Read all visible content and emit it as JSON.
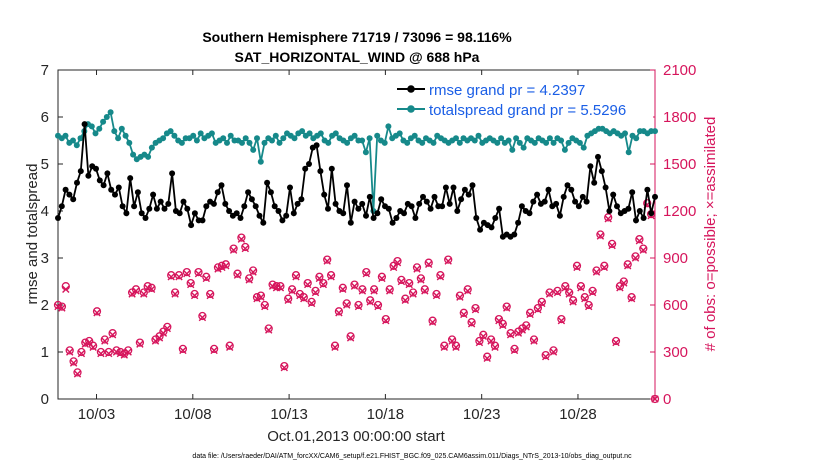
{
  "chart_data": {
    "type": "line",
    "title_line1": "Southern Hemisphere 71719 / 73096 = 98.116%",
    "title_line2": "SAT_HORIZONTAL_WIND @ 688 hPa",
    "ylabel_left": "rmse and totalspread",
    "ylabel_right": "# of obs: o=possible; ×=assimilated",
    "xlabel": "Oct.01,2013 00:00:00 start",
    "footer": "data file: /Users/raeder/DAI/ATM_forcXX/CAM6_setup/f.e21.FHIST_BGC.f09_025.CAM6assim.011/Diags_NTrS_2013-10/obs_diag_output.nc",
    "xlim": [
      1.0,
      32.0
    ],
    "ylim_left": [
      0,
      7
    ],
    "ylim_right": [
      0,
      2100
    ],
    "x_ticks": [
      3,
      8,
      13,
      18,
      23,
      28
    ],
    "x_tick_labels": [
      "10/03",
      "10/08",
      "10/13",
      "10/18",
      "10/23",
      "10/28"
    ],
    "y_left_ticks": [
      0,
      1,
      2,
      3,
      4,
      5,
      6,
      7
    ],
    "y_right_ticks": [
      0,
      300,
      600,
      900,
      1200,
      1500,
      1800,
      2100
    ],
    "legend_position": "top-right",
    "colors": {
      "rmse": "#000000",
      "spread": "#16898a",
      "obs": "#d6155c",
      "axis": "#262626"
    },
    "series": [
      {
        "name": "rmse grand pr = 4.2397",
        "axis": "left",
        "color": "#000000",
        "values": [
          3.85,
          4.1,
          4.45,
          4.35,
          4.25,
          4.6,
          4.85,
          5.85,
          4.75,
          4.95,
          4.9,
          4.65,
          4.55,
          4.8,
          4.45,
          4.35,
          4.5,
          4.1,
          3.95,
          4.7,
          4.1,
          4.4,
          3.95,
          3.85,
          4.05,
          4.35,
          4.05,
          4.2,
          4.05,
          4.15,
          4.8,
          4.0,
          3.95,
          4.2,
          4.05,
          3.7,
          3.95,
          3.8,
          3.8,
          4.1,
          4.2,
          4.15,
          4.4,
          4.55,
          4.15,
          4.0,
          3.9,
          3.95,
          3.85,
          4.1,
          4.4,
          4.25,
          4.1,
          3.9,
          3.75,
          4.6,
          4.4,
          4.1,
          4.0,
          3.8,
          3.9,
          4.5,
          3.95,
          4.15,
          4.25,
          4.9,
          5.0,
          5.35,
          5.4,
          4.85,
          4.35,
          4.05,
          4.9,
          4.15,
          4.0,
          3.95,
          4.55,
          3.75,
          4.2,
          4.05,
          4.15,
          3.9,
          4.3,
          3.85,
          3.95,
          4.25,
          4.1,
          4.05,
          3.75,
          3.85,
          4.0,
          3.95,
          4.15,
          4.1,
          3.85,
          4.15,
          4.3,
          4.2,
          4.05,
          4.3,
          4.1,
          4.1,
          4.5,
          4.15,
          4.5,
          4.0,
          4.25,
          4.45,
          4.35,
          4.55,
          3.85,
          3.6,
          3.75,
          3.7,
          3.65,
          3.85,
          4.05,
          3.45,
          3.5,
          3.45,
          3.5,
          3.75,
          4.1,
          4.0,
          3.95,
          4.2,
          4.35,
          4.15,
          4.2,
          4.45,
          4.1,
          4.15,
          3.9,
          4.3,
          4.55,
          4.45,
          4.2,
          4.1,
          4.3,
          4.2,
          4.95,
          4.6,
          5.15,
          4.85,
          4.5,
          4.0,
          4.35,
          4.1,
          3.95,
          4.0,
          4.05,
          4.4,
          3.8,
          4.0,
          3.85,
          4.45,
          3.95,
          4.3
        ]
      },
      {
        "name": "totalspread grand pr = 5.5296",
        "axis": "left",
        "color": "#16898a",
        "values": [
          5.6,
          5.55,
          5.6,
          5.45,
          5.5,
          5.4,
          5.55,
          5.7,
          5.85,
          5.8,
          5.65,
          5.75,
          5.9,
          6.0,
          6.1,
          5.7,
          5.55,
          5.75,
          5.6,
          5.45,
          5.2,
          5.1,
          5.15,
          5.2,
          5.15,
          5.35,
          5.45,
          5.5,
          5.55,
          5.65,
          5.7,
          5.6,
          5.5,
          5.45,
          5.55,
          5.55,
          5.6,
          5.5,
          5.65,
          5.55,
          5.6,
          5.65,
          5.45,
          5.5,
          5.55,
          5.45,
          5.6,
          5.5,
          5.5,
          5.45,
          5.55,
          5.45,
          5.3,
          5.55,
          5.05,
          5.45,
          5.55,
          5.5,
          5.6,
          5.45,
          5.55,
          5.65,
          5.6,
          5.55,
          5.65,
          5.7,
          5.6,
          5.65,
          5.55,
          5.6,
          5.65,
          5.5,
          5.45,
          5.6,
          5.65,
          5.55,
          5.5,
          5.45,
          5.55,
          5.6,
          5.5,
          5.5,
          5.25,
          5.55,
          4.0,
          5.6,
          5.5,
          5.45,
          5.8,
          5.55,
          5.6,
          5.65,
          5.5,
          5.45,
          5.55,
          5.6,
          5.5,
          5.45,
          5.55,
          5.5,
          5.45,
          5.6,
          5.55,
          5.5,
          5.45,
          5.5,
          5.55,
          5.45,
          5.55,
          5.5,
          5.55,
          5.5,
          5.6,
          5.45,
          5.5,
          5.55,
          5.5,
          5.45,
          5.55,
          5.45,
          5.5,
          5.3,
          5.55,
          5.45,
          5.35,
          5.55,
          5.5,
          5.45,
          5.55,
          5.5,
          5.45,
          5.55,
          5.45,
          5.55,
          5.5,
          5.3,
          5.45,
          5.55,
          5.5,
          5.45,
          5.35,
          5.6,
          5.65,
          5.7,
          5.75,
          5.75,
          5.7,
          5.65,
          5.7,
          5.65,
          5.6,
          5.65,
          5.25,
          5.6,
          5.55,
          5.7,
          5.7,
          5.65,
          5.7,
          5.7
        ]
      },
      {
        "name": "obs possible (o)",
        "axis": "right",
        "color": "#d6155c",
        "marker": "circle",
        "values": [
          600,
          590,
          720,
          310,
          240,
          170,
          300,
          360,
          370,
          340,
          560,
          300,
          380,
          300,
          420,
          310,
          300,
          290,
          310,
          680,
          700,
          360,
          680,
          720,
          710,
          380,
          400,
          430,
          460,
          790,
          680,
          790,
          320,
          810,
          740,
          670,
          810,
          530,
          780,
          670,
          320,
          840,
          850,
          860,
          340,
          960,
          800,
          1030,
          970,
          770,
          820,
          650,
          660,
          600,
          450,
          730,
          720,
          720,
          210,
          640,
          700,
          790,
          670,
          650,
          740,
          620,
          690,
          780,
          740,
          890,
          790,
          340,
          560,
          710,
          610,
          400,
          730,
          600,
          700,
          810,
          630,
          700,
          600,
          780,
          510,
          700,
          850,
          880,
          760,
          640,
          740,
          680,
          840,
          770,
          700,
          870,
          500,
          670,
          790,
          340,
          890,
          380,
          340,
          660,
          550,
          700,
          490,
          580,
          370,
          410,
          270,
          380,
          340,
          510,
          480,
          590,
          420,
          320,
          430,
          450,
          470,
          550,
          380,
          580,
          620,
          280,
          680,
          310,
          690,
          510,
          720,
          680,
          630,
          850,
          720,
          650,
          600,
          690,
          820,
          1050,
          850,
          1160,
          990,
          370,
          720,
          750,
          860,
          650,
          910,
          1020,
          960,
          1250,
          1180,
          0
        ]
      },
      {
        "name": "obs assimilated (×)",
        "axis": "right",
        "color": "#d6155c",
        "marker": "x",
        "values": [
          590,
          580,
          700,
          300,
          230,
          160,
          290,
          350,
          360,
          330,
          550,
          290,
          370,
          290,
          410,
          300,
          290,
          280,
          300,
          670,
          690,
          350,
          670,
          710,
          700,
          370,
          390,
          420,
          450,
          780,
          670,
          780,
          310,
          800,
          730,
          660,
          800,
          520,
          770,
          660,
          310,
          830,
          840,
          850,
          330,
          950,
          790,
          1020,
          960,
          760,
          810,
          640,
          650,
          590,
          440,
          720,
          710,
          710,
          200,
          630,
          690,
          780,
          660,
          640,
          730,
          610,
          680,
          770,
          730,
          880,
          780,
          330,
          550,
          700,
          600,
          390,
          720,
          590,
          690,
          800,
          620,
          690,
          590,
          770,
          500,
          690,
          840,
          870,
          750,
          630,
          730,
          670,
          830,
          760,
          690,
          860,
          490,
          660,
          780,
          330,
          880,
          370,
          330,
          650,
          540,
          690,
          480,
          570,
          360,
          400,
          260,
          370,
          330,
          500,
          470,
          580,
          410,
          310,
          420,
          440,
          460,
          540,
          370,
          570,
          610,
          270,
          670,
          300,
          680,
          500,
          710,
          670,
          620,
          840,
          710,
          640,
          590,
          680,
          810,
          1040,
          840,
          1150,
          980,
          360,
          710,
          740,
          850,
          640,
          900,
          1010,
          950,
          1240,
          1170,
          0
        ]
      }
    ]
  }
}
